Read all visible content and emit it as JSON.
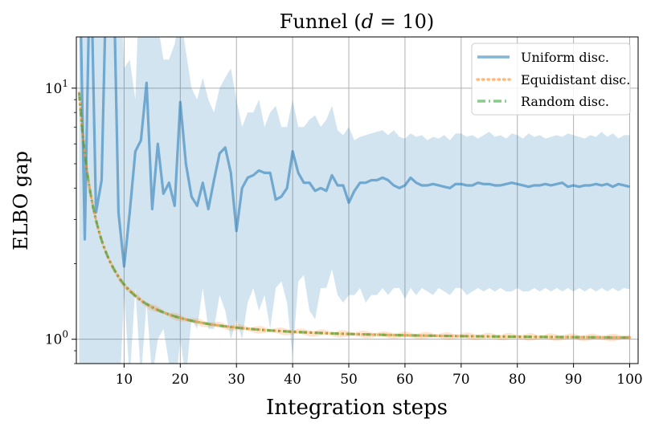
{
  "chart_data": {
    "type": "line",
    "title": "Funnel (d = 10)",
    "title_prefix": "Funnel (",
    "title_var": "d",
    "title_suffix": " = 10)",
    "xlabel": "Integration steps",
    "ylabel": "ELBO gap",
    "xlim": [
      1.5,
      101.5
    ],
    "ylim": [
      0.8,
      16
    ],
    "yscale": "log",
    "grid": true,
    "legend_position": "top-right",
    "x_ticks": [
      10,
      20,
      30,
      40,
      50,
      60,
      70,
      80,
      90,
      100
    ],
    "y_ticks": [
      {
        "value": 1,
        "base": "10",
        "exp": "0"
      },
      {
        "value": 10,
        "base": "10",
        "exp": "1"
      }
    ],
    "series": [
      {
        "name": "Uniform disc.",
        "color": "#1f77b4",
        "style": "solid",
        "x": [
          2,
          3,
          4,
          5,
          6,
          7,
          8,
          9,
          10,
          11,
          12,
          13,
          14,
          15,
          16,
          17,
          18,
          19,
          20,
          21,
          22,
          23,
          24,
          25,
          26,
          27,
          28,
          29,
          30,
          31,
          32,
          33,
          34,
          35,
          36,
          37,
          38,
          39,
          40,
          41,
          42,
          43,
          44,
          45,
          46,
          47,
          48,
          49,
          50,
          51,
          52,
          53,
          54,
          55,
          56,
          57,
          58,
          59,
          60,
          61,
          62,
          63,
          64,
          65,
          66,
          67,
          68,
          69,
          70,
          71,
          72,
          73,
          74,
          75,
          76,
          77,
          78,
          79,
          80,
          81,
          82,
          83,
          84,
          85,
          86,
          87,
          88,
          89,
          90,
          91,
          92,
          93,
          94,
          95,
          96,
          97,
          98,
          99,
          100
        ],
        "values": [
          40,
          2.5,
          40,
          3.2,
          4.3,
          40,
          40,
          3.2,
          1.95,
          3.2,
          5.6,
          6.2,
          10.5,
          3.3,
          6.0,
          3.8,
          4.2,
          3.4,
          8.8,
          5.0,
          3.7,
          3.4,
          4.2,
          3.3,
          4.3,
          5.5,
          5.8,
          4.6,
          2.7,
          4.0,
          4.4,
          4.5,
          4.7,
          4.6,
          4.6,
          3.6,
          3.7,
          4.0,
          5.6,
          4.6,
          4.2,
          4.2,
          3.9,
          4.0,
          3.9,
          4.5,
          4.1,
          4.1,
          3.5,
          3.9,
          4.2,
          4.2,
          4.3,
          4.3,
          4.4,
          4.3,
          4.1,
          4.0,
          4.1,
          4.4,
          4.2,
          4.1,
          4.1,
          4.15,
          4.1,
          4.05,
          4.0,
          4.15,
          4.15,
          4.1,
          4.1,
          4.2,
          4.15,
          4.15,
          4.1,
          4.1,
          4.15,
          4.2,
          4.15,
          4.1,
          4.05,
          4.1,
          4.1,
          4.15,
          4.1,
          4.15,
          4.2,
          4.05,
          4.1,
          4.05,
          4.1,
          4.1,
          4.15,
          4.1,
          4.15,
          4.05,
          4.15,
          4.1,
          4.05
        ],
        "band_lower": [
          0.5,
          0.5,
          0.5,
          0.5,
          0.5,
          0.5,
          0.5,
          0.5,
          1.5,
          0.7,
          1.6,
          0.7,
          1.4,
          0.7,
          1.0,
          1.1,
          0.8,
          0.6,
          1.0,
          0.7,
          1.2,
          1.1,
          1.6,
          1.1,
          1.1,
          1.5,
          1.3,
          1.0,
          1.2,
          1.0,
          1.4,
          1.6,
          1.3,
          1.5,
          1.1,
          1.6,
          1.7,
          1.4,
          0.85,
          1.7,
          1.8,
          1.3,
          1.2,
          1.6,
          1.6,
          1.9,
          1.5,
          1.4,
          1.5,
          1.5,
          1.6,
          1.4,
          1.5,
          1.5,
          1.6,
          1.5,
          1.6,
          1.6,
          1.45,
          1.6,
          1.5,
          1.6,
          1.55,
          1.5,
          1.6,
          1.55,
          1.5,
          1.6,
          1.6,
          1.5,
          1.55,
          1.6,
          1.55,
          1.6,
          1.55,
          1.6,
          1.55,
          1.55,
          1.6,
          1.55,
          1.55,
          1.6,
          1.55,
          1.6,
          1.55,
          1.6,
          1.55,
          1.6,
          1.55,
          1.6,
          1.55,
          1.6,
          1.55,
          1.6,
          1.55,
          1.6,
          1.55,
          1.6,
          1.58
        ],
        "band_upper": [
          40,
          40,
          40,
          40,
          40,
          40,
          40,
          40,
          12,
          13,
          9,
          40,
          20,
          40,
          18,
          13,
          13,
          15,
          20,
          14,
          10,
          9,
          11,
          9,
          8,
          10,
          11,
          12,
          9,
          7,
          8,
          8,
          9,
          7,
          8,
          8.5,
          7,
          7,
          9,
          7,
          7,
          7.5,
          7.8,
          7,
          7.5,
          8.5,
          6.8,
          6.5,
          7,
          6.2,
          6.4,
          6.5,
          6.6,
          6.7,
          6.8,
          6.5,
          6.8,
          6.4,
          6.3,
          6.6,
          6.4,
          6.5,
          6.2,
          6.4,
          6.3,
          6.5,
          6.2,
          6.6,
          6.6,
          6.4,
          6.5,
          6.3,
          6.5,
          6.7,
          6.4,
          6.5,
          6.3,
          6.6,
          6.5,
          6.3,
          6.6,
          6.4,
          6.5,
          6.3,
          6.4,
          6.5,
          6.4,
          6.6,
          6.5,
          6.4,
          6.3,
          6.5,
          6.4,
          6.7,
          6.4,
          6.6,
          6.3,
          6.5,
          6.5
        ]
      },
      {
        "name": "Equidistant disc.",
        "color": "#ff7f0e",
        "style": "dotted",
        "curve": "1.0 + 26/x^1.6",
        "band_width_fraction": 0.025
      },
      {
        "name": "Random disc.",
        "color": "#2ca02c",
        "style": "dashdot",
        "curve": "1.0 + 26/x^1.6"
      }
    ]
  }
}
